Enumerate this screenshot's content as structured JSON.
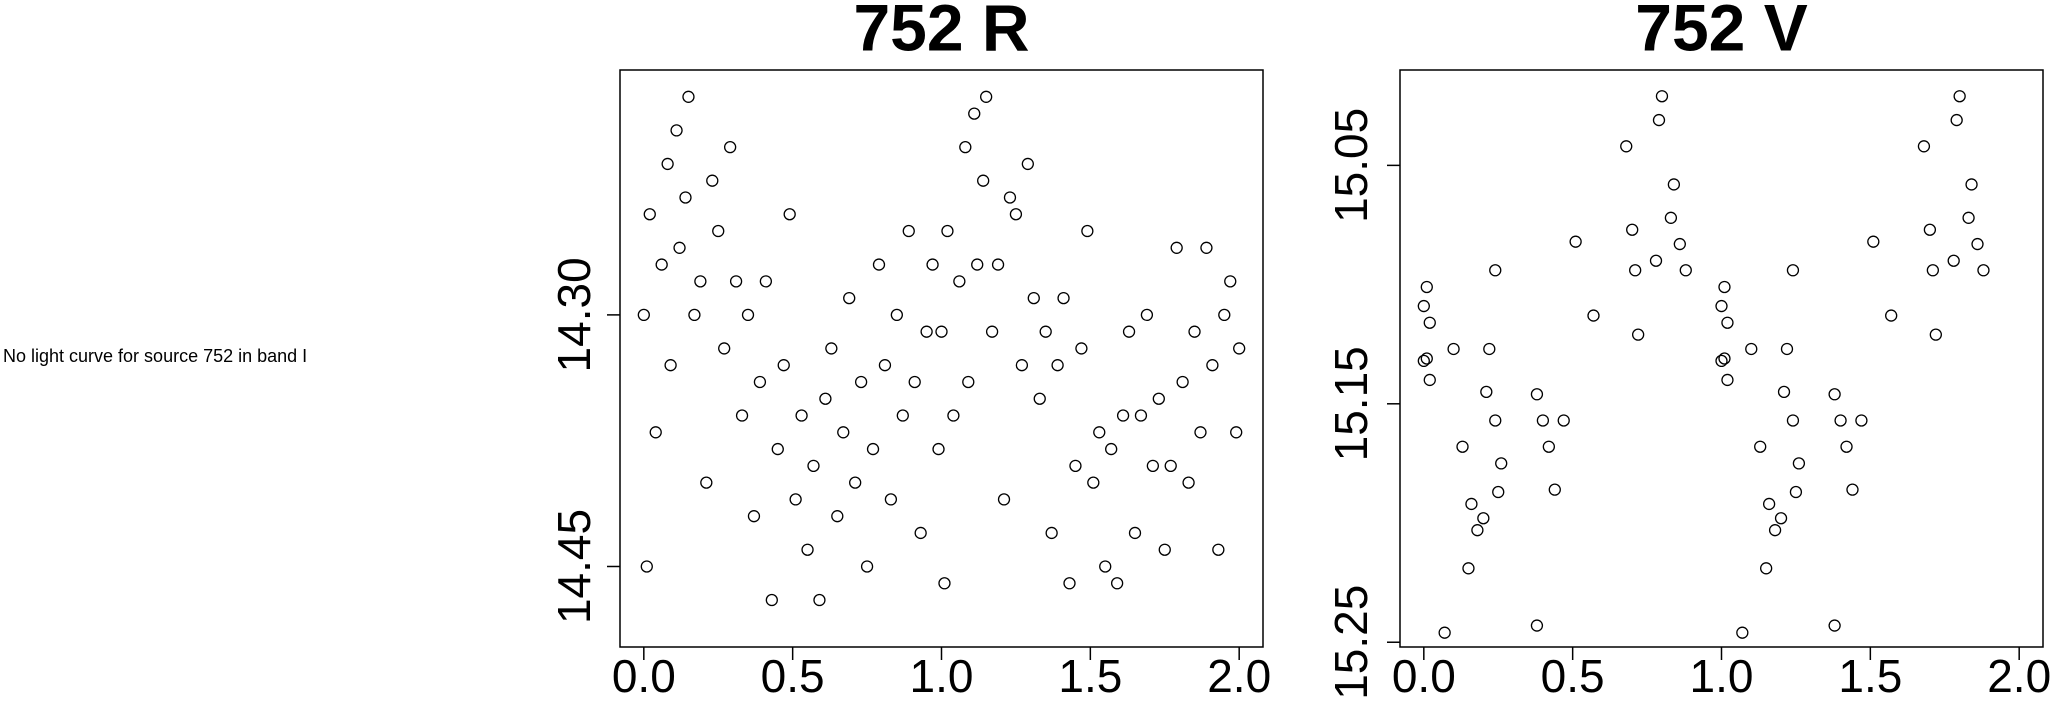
{
  "message": "No light curve for source 752 in band I",
  "chart_data": [
    {
      "type": "scatter",
      "title": "752 R",
      "marker": "open-circle",
      "color": "#000000",
      "xlim": [
        -0.08,
        2.08
      ],
      "ylim": [
        14.498,
        14.154
      ],
      "xticks": [
        {
          "value": 0,
          "label": "0.0"
        },
        0.5,
        {
          "value": 1,
          "label": "1.0"
        },
        1.5,
        {
          "value": 2,
          "label": "2.0"
        }
      ],
      "yticks": [
        {
          "value": 14.3,
          "label": "14.30"
        },
        {
          "value": 14.45,
          "label": "14.45"
        }
      ],
      "x": [
        0.0,
        0.01,
        0.02,
        0.04,
        0.06,
        0.08,
        0.09,
        0.11,
        0.12,
        0.14,
        0.15,
        0.17,
        0.19,
        0.21,
        0.23,
        0.25,
        0.27,
        0.29,
        0.31,
        0.33,
        0.35,
        0.37,
        0.39,
        0.41,
        0.43,
        0.45,
        0.47,
        0.49,
        0.51,
        0.53,
        0.55,
        0.57,
        0.59,
        0.61,
        0.63,
        0.65,
        0.67,
        0.69,
        0.71,
        0.73,
        0.75,
        0.77,
        0.79,
        0.81,
        0.83,
        0.85,
        0.87,
        0.89,
        0.91,
        0.93,
        0.95,
        0.97,
        0.99,
        1.0,
        1.01,
        1.02,
        1.04,
        1.06,
        1.08,
        1.09,
        1.11,
        1.12,
        1.14,
        1.15,
        1.17,
        1.19,
        1.21,
        1.23,
        1.25,
        1.27,
        1.29,
        1.31,
        1.33,
        1.35,
        1.37,
        1.39,
        1.41,
        1.43,
        1.45,
        1.47,
        1.49,
        1.51,
        1.53,
        1.55,
        1.57,
        1.59,
        1.61,
        1.63,
        1.65,
        1.67,
        1.69,
        1.71,
        1.73,
        1.75,
        1.77,
        1.79,
        1.81,
        1.83,
        1.85,
        1.87,
        1.89,
        1.91,
        1.93,
        1.95,
        1.97,
        1.99,
        2.0
      ],
      "y": [
        14.3,
        14.45,
        14.24,
        14.37,
        14.27,
        14.21,
        14.33,
        14.19,
        14.26,
        14.23,
        14.17,
        14.3,
        14.28,
        14.4,
        14.22,
        14.25,
        14.32,
        14.2,
        14.28,
        14.36,
        14.3,
        14.42,
        14.34,
        14.28,
        14.47,
        14.38,
        14.33,
        14.24,
        14.41,
        14.36,
        14.44,
        14.39,
        14.47,
        14.35,
        14.32,
        14.42,
        14.37,
        14.29,
        14.4,
        14.34,
        14.45,
        14.38,
        14.27,
        14.33,
        14.41,
        14.3,
        14.36,
        14.25,
        14.34,
        14.43,
        14.31,
        14.27,
        14.38,
        14.31,
        14.46,
        14.25,
        14.36,
        14.28,
        14.2,
        14.34,
        14.18,
        14.27,
        14.22,
        14.17,
        14.31,
        14.27,
        14.41,
        14.23,
        14.24,
        14.33,
        14.21,
        14.29,
        14.35,
        14.31,
        14.43,
        14.33,
        14.29,
        14.46,
        14.39,
        14.32,
        14.25,
        14.4,
        14.37,
        14.45,
        14.38,
        14.46,
        14.36,
        14.31,
        14.43,
        14.36,
        14.3,
        14.39,
        14.35,
        14.44,
        14.39,
        14.26,
        14.34,
        14.4,
        14.31,
        14.37,
        14.26,
        14.33,
        14.44,
        14.3,
        14.28,
        14.37,
        14.32
      ]
    },
    {
      "type": "scatter",
      "title": "752 V",
      "marker": "open-circle",
      "color": "#000000",
      "xlim": [
        -0.08,
        2.08
      ],
      "ylim": [
        15.252,
        15.01
      ],
      "xticks": [
        {
          "value": 0,
          "label": "0.0"
        },
        0.5,
        {
          "value": 1,
          "label": "1.0"
        },
        1.5,
        {
          "value": 2,
          "label": "2.0"
        }
      ],
      "yticks": [
        15.05,
        15.15,
        15.25
      ],
      "x": [
        0.01,
        0.0,
        0.02,
        0.0,
        0.02,
        0.01,
        0.07,
        0.1,
        0.13,
        0.15,
        0.16,
        0.18,
        0.2,
        0.21,
        0.22,
        0.24,
        0.24,
        0.25,
        0.26,
        0.38,
        0.38,
        0.4,
        0.42,
        0.44,
        0.47,
        0.51,
        0.57,
        0.68,
        0.7,
        0.71,
        0.72,
        0.78,
        0.79,
        0.8,
        0.83,
        0.84,
        0.86,
        0.88,
        1.01,
        1.0,
        1.02,
        1.0,
        1.02,
        1.01,
        1.07,
        1.1,
        1.13,
        1.15,
        1.16,
        1.18,
        1.2,
        1.21,
        1.22,
        1.24,
        1.24,
        1.25,
        1.26,
        1.38,
        1.38,
        1.4,
        1.42,
        1.44,
        1.47,
        1.51,
        1.57,
        1.68,
        1.7,
        1.71,
        1.72,
        1.78,
        1.79,
        1.8,
        1.83,
        1.84,
        1.86,
        1.88
      ],
      "y": [
        15.101,
        15.109,
        15.116,
        15.132,
        15.14,
        15.131,
        15.246,
        15.127,
        15.168,
        15.219,
        15.192,
        15.203,
        15.198,
        15.145,
        15.127,
        15.094,
        15.157,
        15.187,
        15.175,
        15.243,
        15.146,
        15.157,
        15.168,
        15.186,
        15.157,
        15.082,
        15.113,
        15.042,
        15.077,
        15.094,
        15.121,
        15.09,
        15.031,
        15.021,
        15.072,
        15.058,
        15.083,
        15.094,
        15.101,
        15.109,
        15.116,
        15.132,
        15.14,
        15.131,
        15.246,
        15.127,
        15.168,
        15.219,
        15.192,
        15.203,
        15.198,
        15.145,
        15.127,
        15.094,
        15.157,
        15.187,
        15.175,
        15.243,
        15.146,
        15.157,
        15.168,
        15.186,
        15.157,
        15.082,
        15.113,
        15.042,
        15.077,
        15.094,
        15.121,
        15.09,
        15.031,
        15.021,
        15.072,
        15.058,
        15.083,
        15.094
      ]
    }
  ]
}
